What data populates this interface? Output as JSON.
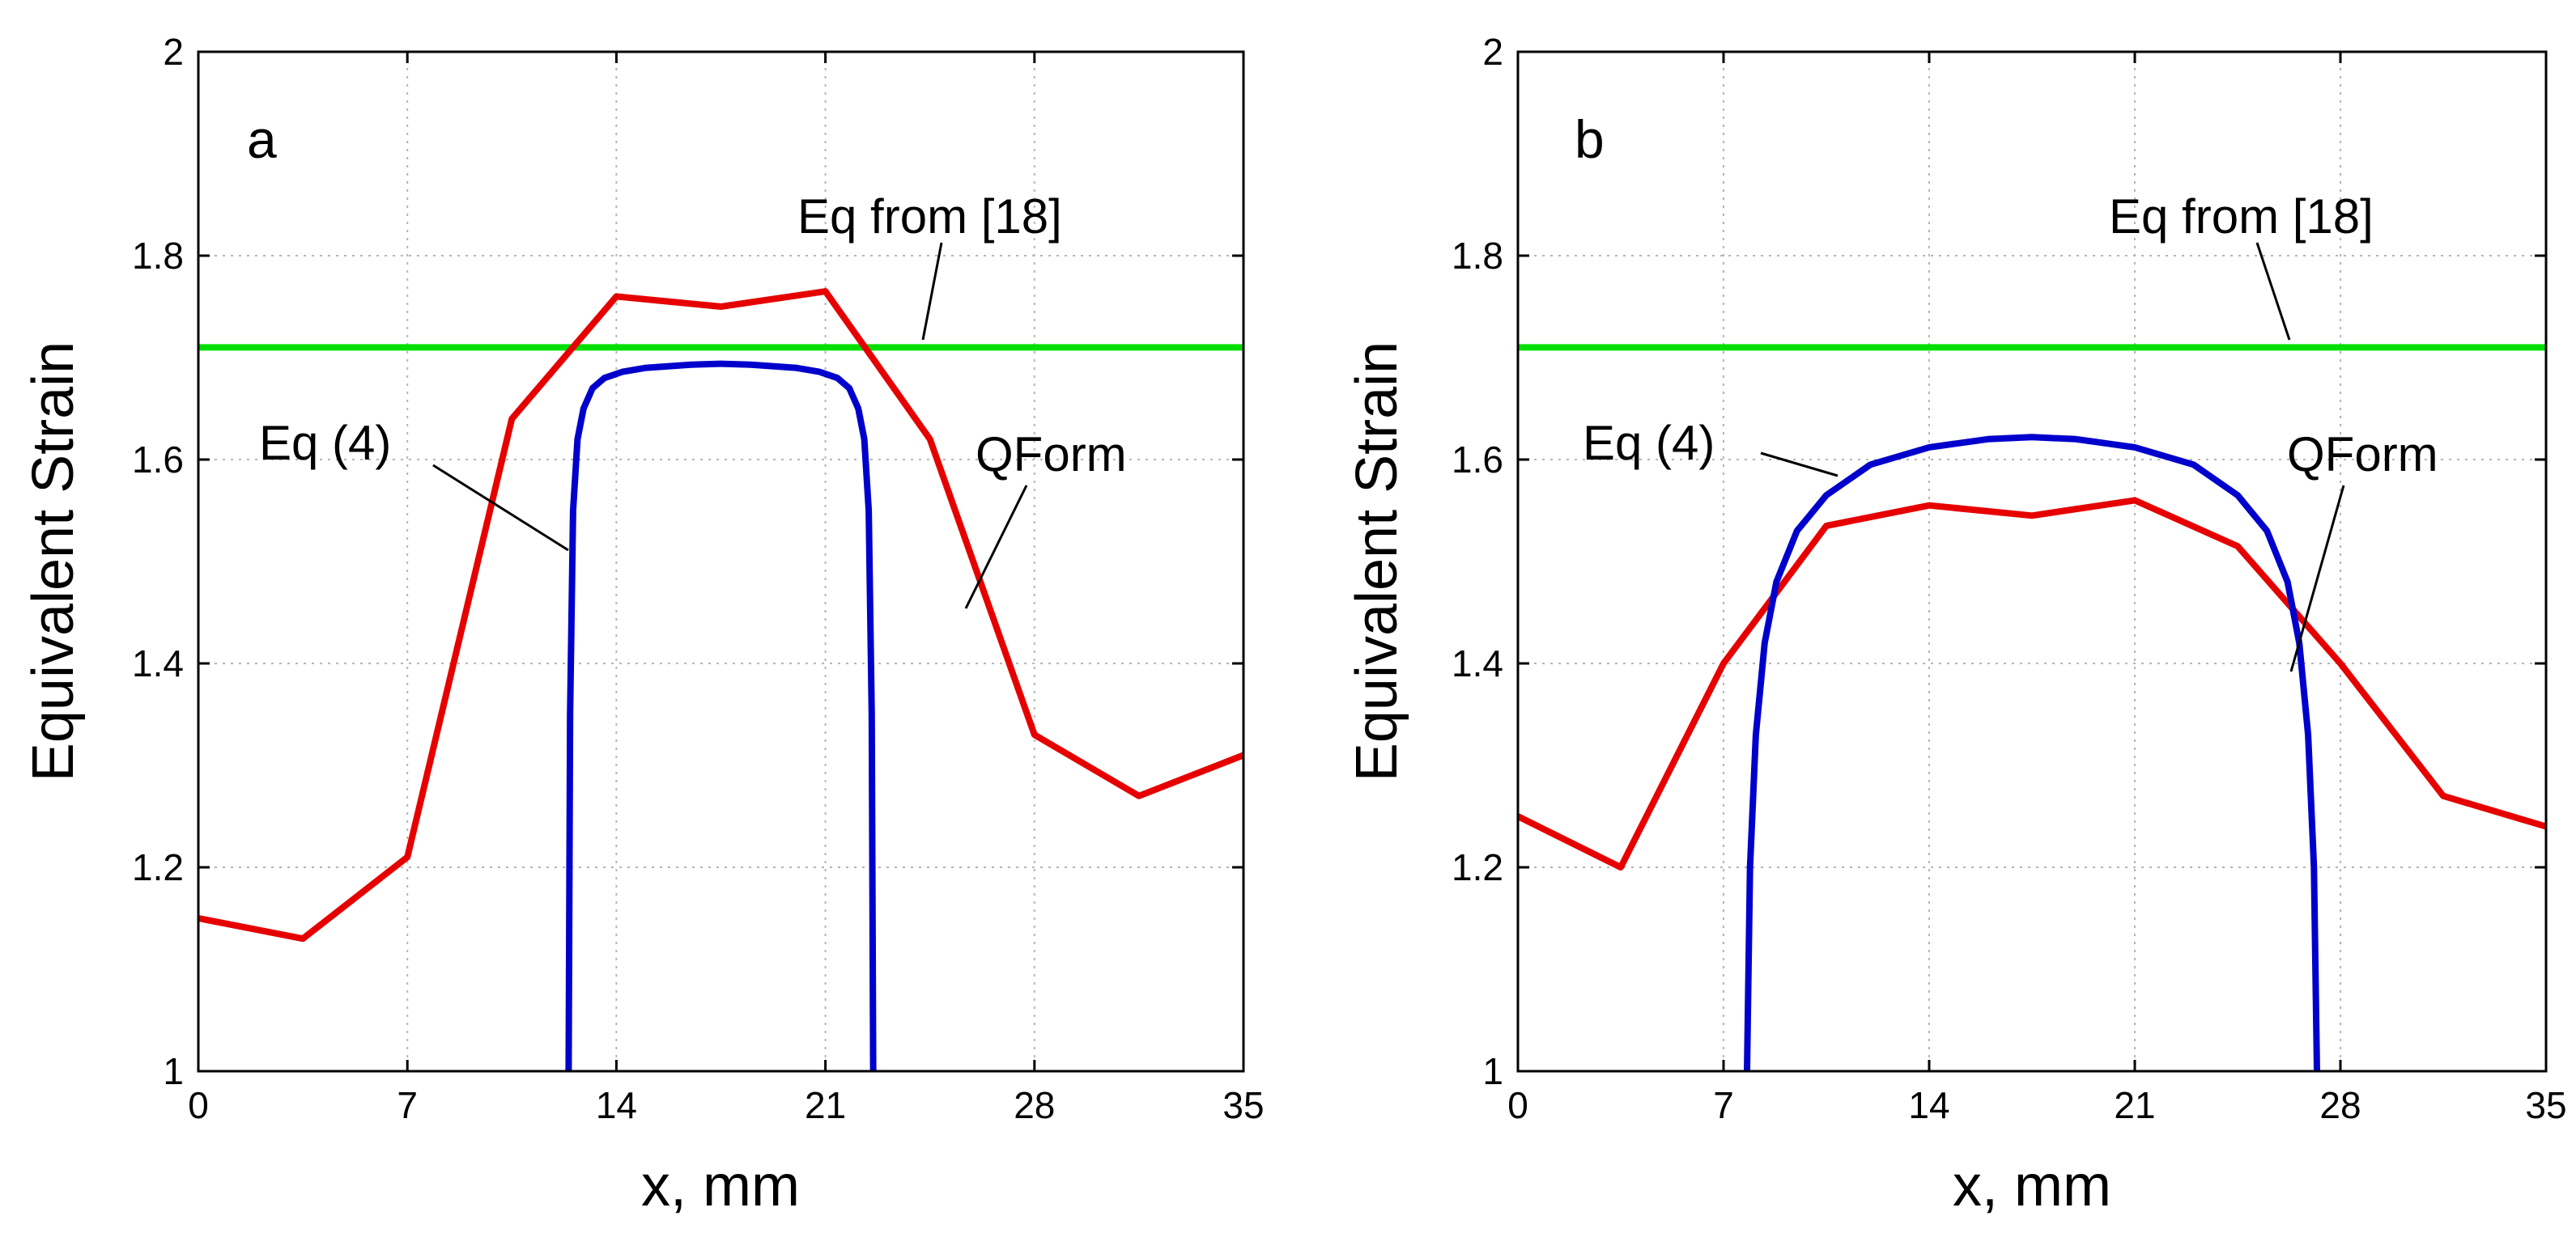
{
  "chart_data": [
    {
      "type": "line",
      "panel_label": "a",
      "xlabel": "x, mm",
      "ylabel": "Equivalent Strain",
      "xlim": [
        0,
        35
      ],
      "ylim": [
        1,
        2
      ],
      "xticks": [
        0,
        7,
        14,
        21,
        28,
        35
      ],
      "yticks": [
        1,
        1.2,
        1.4,
        1.6,
        1.8,
        2
      ],
      "xtick_labels": [
        "0",
        "7",
        "14",
        "21",
        "28",
        "35"
      ],
      "ytick_labels": [
        "1",
        "1.2",
        "1.4",
        "1.6",
        "1.8",
        "2"
      ],
      "grid": true,
      "series": [
        {
          "name": "Eq from [18]",
          "color": "#00e000",
          "x": [
            0,
            35
          ],
          "y": [
            1.71,
            1.71
          ]
        },
        {
          "name": "QForm",
          "color": "#e60000",
          "x": [
            0,
            3.5,
            7,
            10.5,
            14,
            17.5,
            21,
            24.5,
            28,
            31.5,
            35
          ],
          "y": [
            1.15,
            1.13,
            1.21,
            1.64,
            1.76,
            1.75,
            1.765,
            1.62,
            1.33,
            1.27,
            1.31
          ]
        },
        {
          "name": "Eq (4)",
          "color": "#0000cc",
          "x": [
            12.4,
            12.45,
            12.55,
            12.7,
            12.9,
            13.2,
            13.6,
            14.2,
            15.0,
            16.5,
            17.5,
            18.5,
            20.0,
            20.8,
            21.4,
            21.8,
            22.1,
            22.3,
            22.45,
            22.55,
            22.6
          ],
          "y": [
            1.0,
            1.35,
            1.55,
            1.62,
            1.65,
            1.67,
            1.68,
            1.686,
            1.69,
            1.693,
            1.694,
            1.693,
            1.69,
            1.686,
            1.68,
            1.67,
            1.65,
            1.62,
            1.55,
            1.35,
            1.0
          ]
        }
      ],
      "annotations": [
        {
          "text": "Eq from [18]",
          "series": "Eq from [18]"
        },
        {
          "text": "Eq (4)",
          "series": "Eq (4)"
        },
        {
          "text": "QForm",
          "series": "QForm"
        }
      ]
    },
    {
      "type": "line",
      "panel_label": "b",
      "xlabel": "x, mm",
      "ylabel": "Equivalent Strain",
      "xlim": [
        0,
        35
      ],
      "ylim": [
        1,
        2
      ],
      "xticks": [
        0,
        7,
        14,
        21,
        28,
        35
      ],
      "yticks": [
        1,
        1.2,
        1.4,
        1.6,
        1.8,
        2
      ],
      "xtick_labels": [
        "0",
        "7",
        "14",
        "21",
        "28",
        "35"
      ],
      "ytick_labels": [
        "1",
        "1.2",
        "1.4",
        "1.6",
        "1.8",
        "2"
      ],
      "grid": true,
      "series": [
        {
          "name": "Eq from [18]",
          "color": "#00e000",
          "x": [
            0,
            35
          ],
          "y": [
            1.71,
            1.71
          ]
        },
        {
          "name": "QForm",
          "color": "#e60000",
          "x": [
            0,
            3.5,
            7,
            10.5,
            14,
            17.5,
            21,
            24.5,
            28,
            31.5,
            35
          ],
          "y": [
            1.25,
            1.2,
            1.4,
            1.535,
            1.555,
            1.545,
            1.56,
            1.515,
            1.4,
            1.27,
            1.24
          ]
        },
        {
          "name": "Eq (4)",
          "color": "#0000cc",
          "x": [
            7.8,
            7.9,
            8.1,
            8.4,
            8.8,
            9.5,
            10.5,
            12.0,
            14.0,
            16.0,
            17.5,
            19.0,
            21.0,
            23.0,
            24.5,
            25.5,
            26.2,
            26.6,
            26.9,
            27.1,
            27.2
          ],
          "y": [
            1.0,
            1.2,
            1.33,
            1.42,
            1.48,
            1.53,
            1.565,
            1.595,
            1.612,
            1.62,
            1.622,
            1.62,
            1.612,
            1.595,
            1.565,
            1.53,
            1.48,
            1.42,
            1.33,
            1.2,
            1.0
          ]
        }
      ],
      "annotations": [
        {
          "text": "Eq from [18]",
          "series": "Eq from [18]"
        },
        {
          "text": "Eq (4)",
          "series": "Eq (4)"
        },
        {
          "text": "QForm",
          "series": "QForm"
        }
      ]
    }
  ]
}
